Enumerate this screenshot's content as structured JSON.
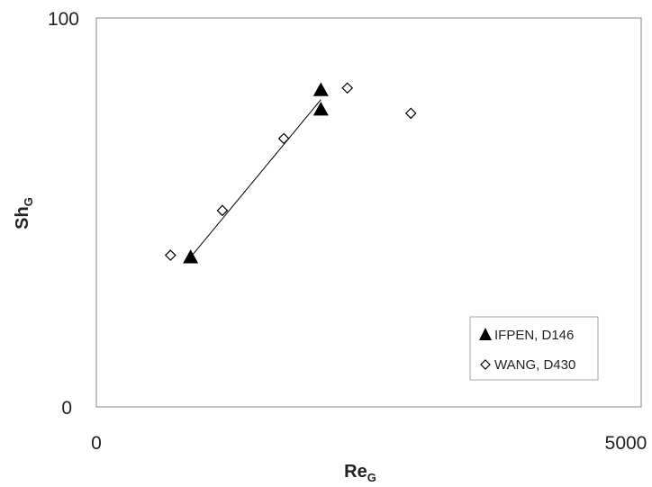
{
  "chart_data": {
    "type": "scatter",
    "x_axis": {
      "label_main": "Re",
      "label_sub": "G",
      "lim": [
        0,
        5000
      ],
      "tick_labels": [
        "0",
        "5000"
      ]
    },
    "y_axis": {
      "label_main": "Sh",
      "label_sub": "G",
      "lim": [
        0,
        100
      ],
      "tick_labels": [
        "0",
        "100"
      ]
    },
    "grid": false,
    "legend_position": "bottom-right",
    "series": [
      {
        "name": "IFPEN, D146",
        "marker": "triangle-filled",
        "color": "#000000",
        "points": [
          {
            "x": 890,
            "y": 38.5
          },
          {
            "x": 2120,
            "y": 81.5
          },
          {
            "x": 2120,
            "y": 76.5
          }
        ]
      },
      {
        "name": "WANG, D430",
        "marker": "diamond-open",
        "color": "#000000",
        "points": [
          {
            "x": 700,
            "y": 39
          },
          {
            "x": 1190,
            "y": 50.5
          },
          {
            "x": 1770,
            "y": 69
          },
          {
            "x": 2370,
            "y": 82
          },
          {
            "x": 2970,
            "y": 75.5
          }
        ]
      }
    ],
    "trendline": {
      "series": "IFPEN, D146",
      "type": "linear",
      "color": "#000000"
    }
  }
}
